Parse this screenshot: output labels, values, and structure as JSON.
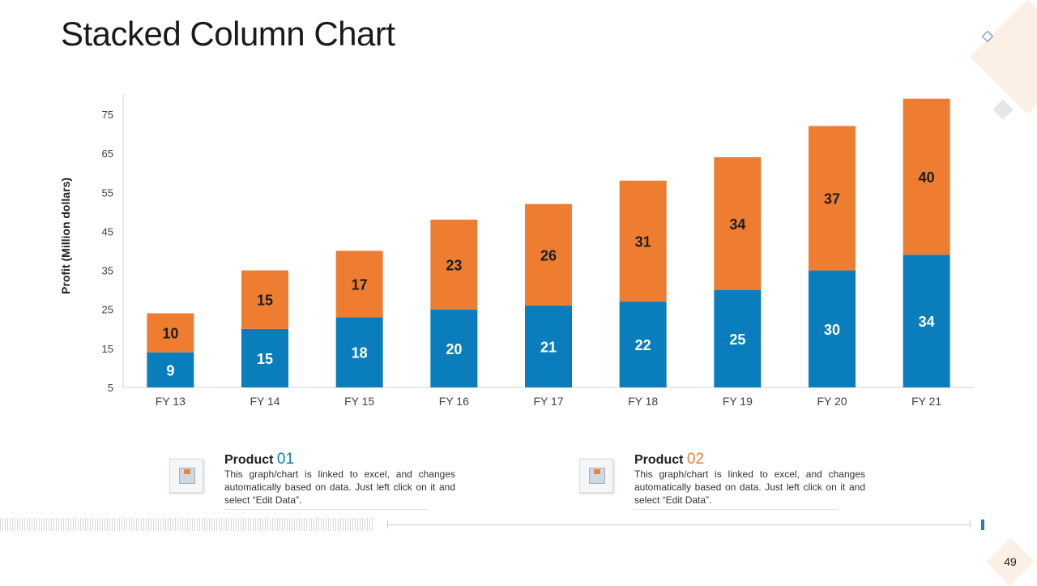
{
  "slide": {
    "title": "Stacked Column Chart",
    "page_number": "49"
  },
  "colors": {
    "product01": "#0a7ebd",
    "product02": "#ee7d31",
    "axis": "#d0d0d0",
    "tick_text": "#404040",
    "label_light": "#ffffff",
    "label_dark": "#1e1e1e"
  },
  "legend": [
    {
      "label": "Product",
      "number": "01",
      "color": "#0a7ebd",
      "text": "This graph/chart is linked to excel, and changes automatically based on data. Just left click on it and select “Edit Data”."
    },
    {
      "label": "Product",
      "number": "02",
      "color": "#ee7d31",
      "text": "This graph/chart is linked to excel, and changes automatically based on data. Just left click on it and select “Edit Data”."
    }
  ],
  "chart_data": {
    "type": "bar",
    "stacked": true,
    "title": "",
    "xlabel": "",
    "ylabel": "Profit  (Million dollars)",
    "ylim": [
      5,
      75
    ],
    "yticks": [
      5,
      15,
      25,
      35,
      45,
      55,
      65,
      75
    ],
    "grid": false,
    "categories": [
      "FY 13",
      "FY 14",
      "FY 15",
      "FY 16",
      "FY 17",
      "FY 18",
      "FY 19",
      "FY 20",
      "FY 21"
    ],
    "series": [
      {
        "values": [
          9,
          15,
          18,
          20,
          21,
          22,
          25,
          30,
          34
        ],
        "color": "#0a7ebd"
      },
      {
        "values": [
          10,
          15,
          17,
          23,
          26,
          31,
          34,
          37,
          40
        ],
        "color": "#ee7d31"
      }
    ]
  }
}
